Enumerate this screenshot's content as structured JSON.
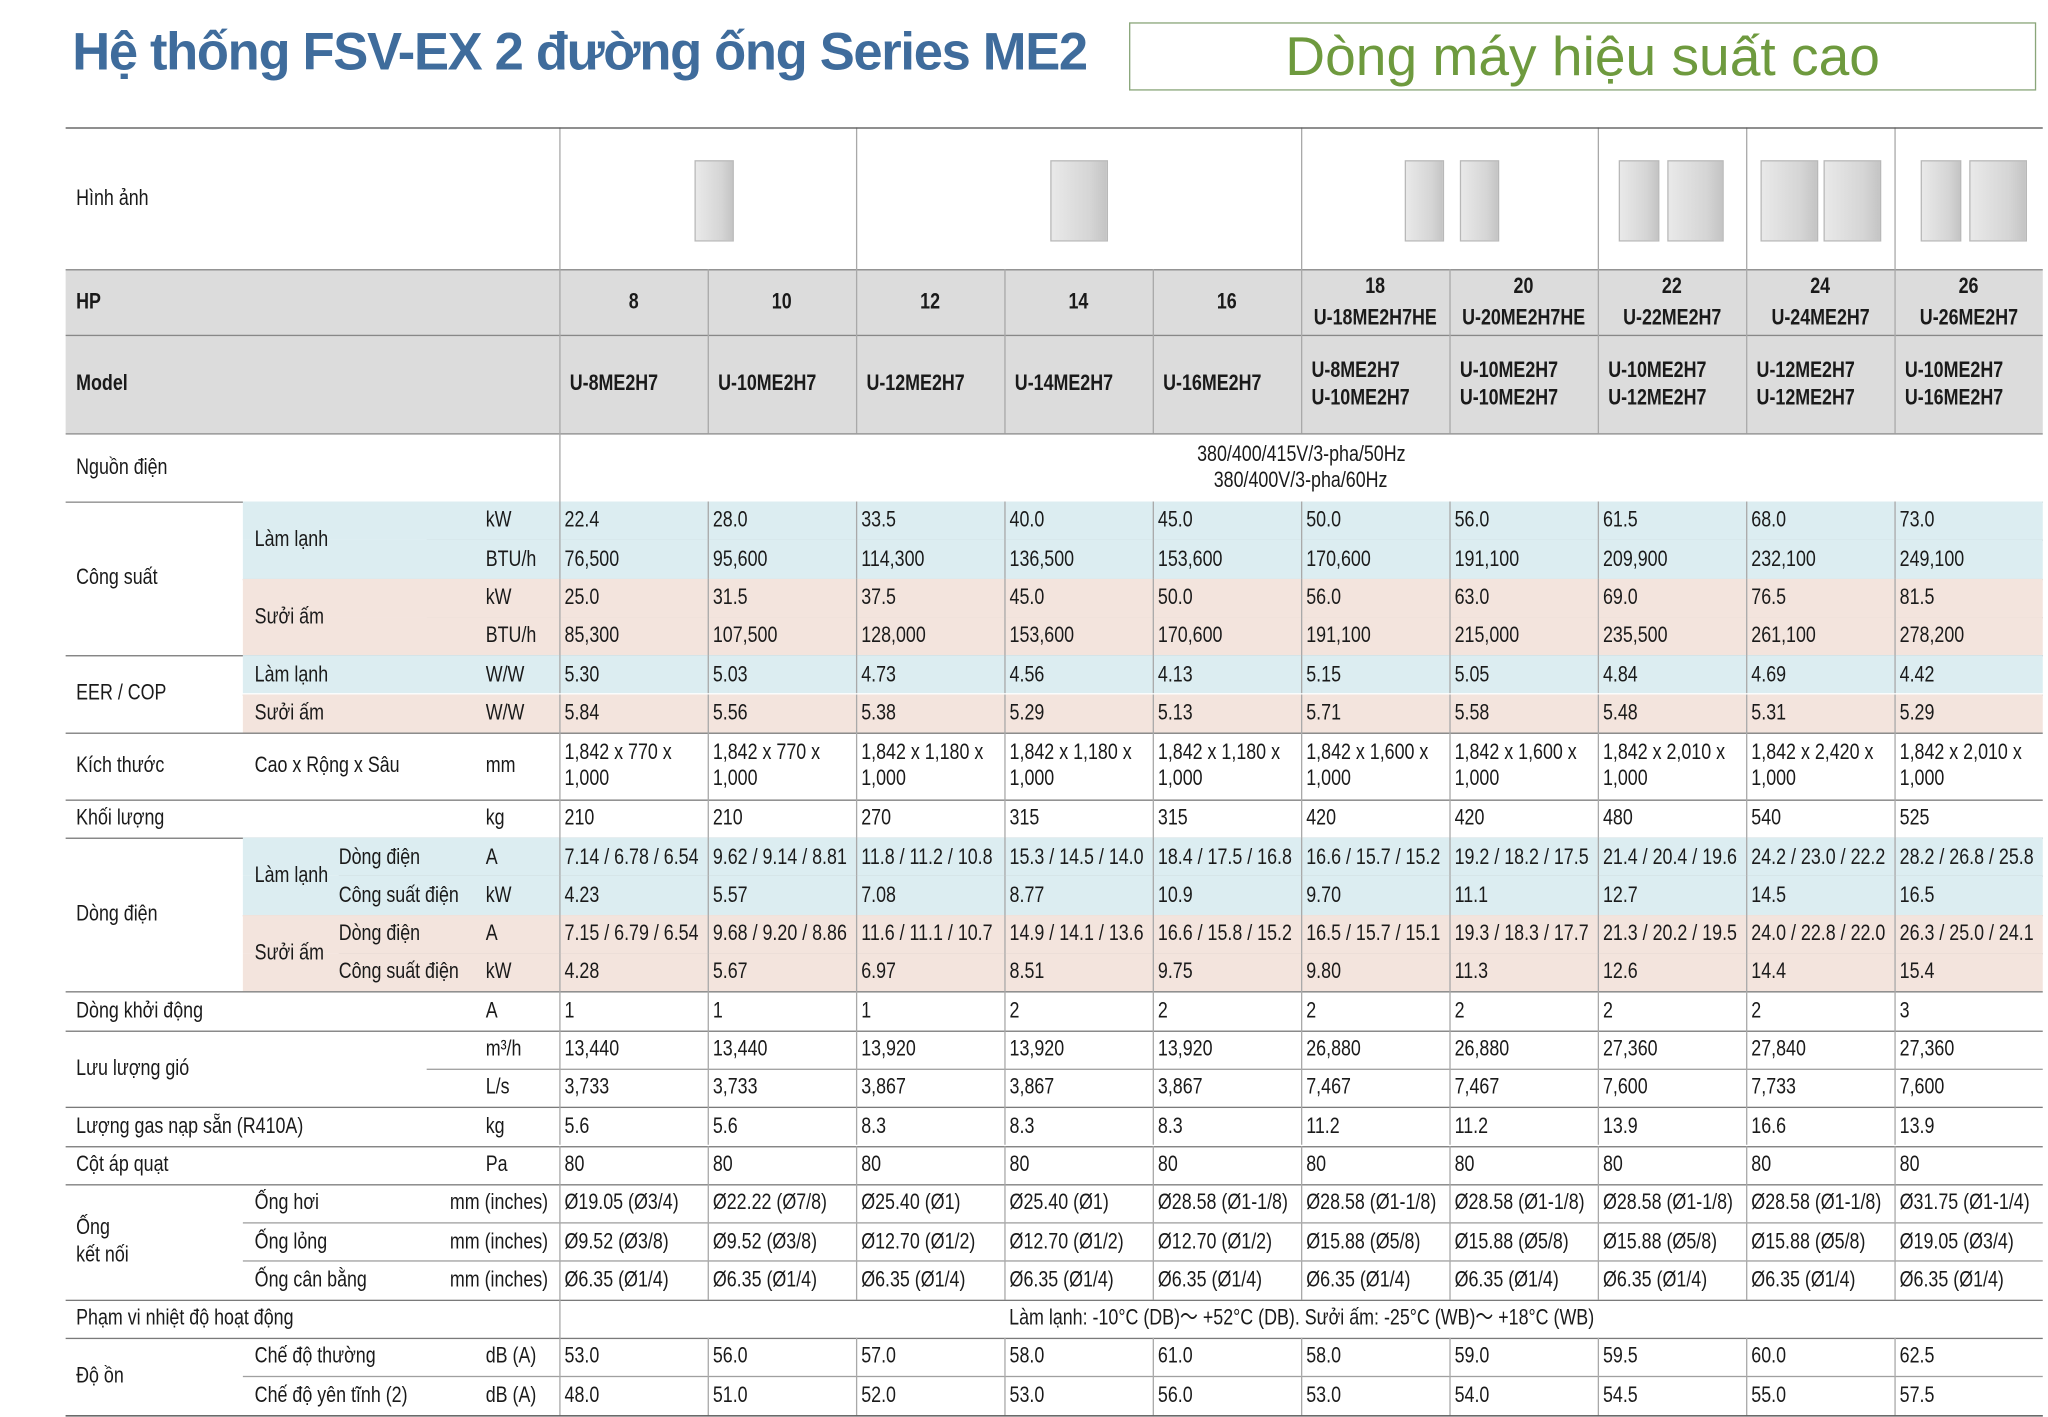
{
  "header": {
    "title": "Hệ thống FSV-EX 2 đường ống Series ME2",
    "subtitle": "Dòng máy hiệu suất cao"
  },
  "table": {
    "image_label": "Hình ảnh",
    "hp_label": "HP",
    "hp": [
      "8",
      "10",
      "12",
      "14",
      "16",
      "18",
      "20",
      "22",
      "24",
      "26"
    ],
    "hp_model": [
      "U-18ME2H7HE",
      "U-20ME2H7HE",
      "U-22ME2H7",
      "U-24ME2H7",
      "U-26ME2H7"
    ],
    "model_label": "Model",
    "models": [
      [
        "U-8ME2H7"
      ],
      [
        "U-10ME2H7"
      ],
      [
        "U-12ME2H7"
      ],
      [
        "U-14ME2H7"
      ],
      [
        "U-16ME2H7"
      ],
      [
        "U-8ME2H7",
        "U-10ME2H7"
      ],
      [
        "U-10ME2H7",
        "U-10ME2H7"
      ],
      [
        "U-10ME2H7",
        "U-12ME2H7"
      ],
      [
        "U-12ME2H7",
        "U-12ME2H7"
      ],
      [
        "U-10ME2H7",
        "U-16ME2H7"
      ]
    ],
    "power_supply": {
      "label": "Nguồn điện",
      "lines": [
        "380/400/415V/3-pha/50Hz",
        "380/400V/3-pha/60Hz"
      ]
    },
    "groups": [
      {
        "label": "Công suất",
        "subgroups": [
          {
            "label": "Làm lạnh",
            "color": "#dcedf1",
            "rows": [
              {
                "unit": "kW",
                "values": [
                  "22.4",
                  "28.0",
                  "33.5",
                  "40.0",
                  "45.0",
                  "50.0",
                  "56.0",
                  "61.5",
                  "68.0",
                  "73.0"
                ]
              },
              {
                "unit": "BTU/h",
                "values": [
                  "76,500",
                  "95,600",
                  "114,300",
                  "136,500",
                  "153,600",
                  "170,600",
                  "191,100",
                  "209,900",
                  "232,100",
                  "249,100"
                ]
              }
            ]
          },
          {
            "label": "Sưởi ấm",
            "color": "#f3e4dd",
            "rows": [
              {
                "unit": "kW",
                "values": [
                  "25.0",
                  "31.5",
                  "37.5",
                  "45.0",
                  "50.0",
                  "56.0",
                  "63.0",
                  "69.0",
                  "76.5",
                  "81.5"
                ]
              },
              {
                "unit": "BTU/h",
                "values": [
                  "85,300",
                  "107,500",
                  "128,000",
                  "153,600",
                  "170,600",
                  "191,100",
                  "215,000",
                  "235,500",
                  "261,100",
                  "278,200"
                ]
              }
            ]
          }
        ]
      },
      {
        "label": "EER / COP",
        "subgroups": [
          {
            "label": "Làm lạnh",
            "color": "#dcedf1",
            "rows": [
              {
                "unit": "W/W",
                "values": [
                  "5.30",
                  "5.03",
                  "4.73",
                  "4.56",
                  "4.13",
                  "5.15",
                  "5.05",
                  "4.84",
                  "4.69",
                  "4.42"
                ]
              }
            ]
          },
          {
            "label": "Sưởi ấm",
            "color": "#f3e4dd",
            "rows": [
              {
                "unit": "W/W",
                "values": [
                  "5.84",
                  "5.56",
                  "5.38",
                  "5.29",
                  "5.13",
                  "5.71",
                  "5.58",
                  "5.48",
                  "5.31",
                  "5.29"
                ]
              }
            ]
          }
        ]
      },
      {
        "label": "Kích thước",
        "subgroups": [
          {
            "rows": [
              {
                "label": "Cao x Rộng x Sâu",
                "unit": "mm",
                "values": [
                  "1,842 x 770 x\n1,000",
                  "1,842 x 770 x\n1,000",
                  "1,842 x 1,180 x\n1,000",
                  "1,842 x 1,180 x\n1,000",
                  "1,842 x 1,180 x\n1,000",
                  "1,842 x 1,600 x\n1,000",
                  "1,842 x 1,600 x\n1,000",
                  "1,842 x 2,010 x\n1,000",
                  "1,842 x 2,420 x\n1,000",
                  "1,842 x 2,010 x\n1,000"
                ]
              }
            ]
          }
        ]
      },
      {
        "label": "Khối lượng",
        "subgroups": [
          {
            "rows": [
              {
                "unit": "kg",
                "values": [
                  "210",
                  "210",
                  "270",
                  "315",
                  "315",
                  "420",
                  "420",
                  "480",
                  "540",
                  "525"
                ]
              }
            ]
          }
        ]
      },
      {
        "label": "Dòng điện",
        "subgroups": [
          {
            "label": "Làm lạnh",
            "color": "#dcedf1",
            "rows": [
              {
                "label": "Dòng điện",
                "unit": "A",
                "values": [
                  "7.14 / 6.78 / 6.54",
                  "9.62 / 9.14 / 8.81",
                  "11.8 / 11.2 / 10.8",
                  "15.3 / 14.5 / 14.0",
                  "18.4 / 17.5 / 16.8",
                  "16.6 / 15.7 / 15.2",
                  "19.2 / 18.2 / 17.5",
                  "21.4 / 20.4 / 19.6",
                  "24.2 / 23.0 / 22.2",
                  "28.2 / 26.8 / 25.8"
                ]
              },
              {
                "label": "Công suất điện",
                "unit": "kW",
                "values": [
                  "4.23",
                  "5.57",
                  "7.08",
                  "8.77",
                  "10.9",
                  "9.70",
                  "11.1",
                  "12.7",
                  "14.5",
                  "16.5"
                ]
              }
            ]
          },
          {
            "label": "Sưởi ấm",
            "color": "#f3e4dd",
            "rows": [
              {
                "label": "Dòng điện",
                "unit": "A",
                "values": [
                  "7.15 / 6.79 / 6.54",
                  "9.68 / 9.20 / 8.86",
                  "11.6 / 11.1 / 10.7",
                  "14.9 / 14.1 / 13.6",
                  "16.6 / 15.8 / 15.2",
                  "16.5 / 15.7 / 15.1",
                  "19.3 / 18.3 / 17.7",
                  "21.3 / 20.2 / 19.5",
                  "24.0 / 22.8 / 22.0",
                  "26.3 / 25.0 / 24.1"
                ]
              },
              {
                "label": "Công suất điện",
                "unit": "kW",
                "values": [
                  "4.28",
                  "5.67",
                  "6.97",
                  "8.51",
                  "9.75",
                  "9.80",
                  "11.3",
                  "12.6",
                  "14.4",
                  "15.4"
                ]
              }
            ]
          }
        ]
      },
      {
        "label": "Dòng khởi động",
        "subgroups": [
          {
            "rows": [
              {
                "unit": "A",
                "values": [
                  "1",
                  "1",
                  "1",
                  "2",
                  "2",
                  "2",
                  "2",
                  "2",
                  "2",
                  "3"
                ]
              }
            ]
          }
        ]
      },
      {
        "label": "Lưu lượng gió",
        "subgroups": [
          {
            "rows": [
              {
                "unit": "m³/h",
                "values": [
                  "13,440",
                  "13,440",
                  "13,920",
                  "13,920",
                  "13,920",
                  "26,880",
                  "26,880",
                  "27,360",
                  "27,840",
                  "27,360"
                ]
              },
              {
                "unit": "L/s",
                "values": [
                  "3,733",
                  "3,733",
                  "3,867",
                  "3,867",
                  "3,867",
                  "7,467",
                  "7,467",
                  "7,600",
                  "7,733",
                  "7,600"
                ]
              }
            ]
          }
        ]
      },
      {
        "label": "Lượng gas nạp sẵn (R410A)",
        "subgroups": [
          {
            "rows": [
              {
                "unit": "kg",
                "values": [
                  "5.6",
                  "5.6",
                  "8.3",
                  "8.3",
                  "8.3",
                  "11.2",
                  "11.2",
                  "13.9",
                  "16.6",
                  "13.9"
                ]
              }
            ]
          }
        ]
      },
      {
        "label": "Cột áp quạt",
        "subgroups": [
          {
            "rows": [
              {
                "unit": "Pa",
                "values": [
                  "80",
                  "80",
                  "80",
                  "80",
                  "80",
                  "80",
                  "80",
                  "80",
                  "80",
                  "80"
                ]
              }
            ]
          }
        ]
      },
      {
        "label": "Ống\nkết nối",
        "subgroups": [
          {
            "rows": [
              {
                "label": "Ống hơi",
                "unit": "mm (inches)",
                "values": [
                  "Ø19.05 (Ø3/4)",
                  "Ø22.22 (Ø7/8)",
                  "Ø25.40 (Ø1)",
                  "Ø25.40 (Ø1)",
                  "Ø28.58 (Ø1-1/8)",
                  "Ø28.58 (Ø1-1/8)",
                  "Ø28.58 (Ø1-1/8)",
                  "Ø28.58 (Ø1-1/8)",
                  "Ø28.58 (Ø1-1/8)",
                  "Ø31.75 (Ø1-1/4)"
                ]
              },
              {
                "label": "Ống lỏng",
                "unit": "mm (inches)",
                "values": [
                  "Ø9.52 (Ø3/8)",
                  "Ø9.52 (Ø3/8)",
                  "Ø12.70 (Ø1/2)",
                  "Ø12.70 (Ø1/2)",
                  "Ø12.70 (Ø1/2)",
                  "Ø15.88 (Ø5/8)",
                  "Ø15.88 (Ø5/8)",
                  "Ø15.88 (Ø5/8)",
                  "Ø15.88 (Ø5/8)",
                  "Ø19.05 (Ø3/4)"
                ]
              },
              {
                "label": "Ống cân bằng",
                "unit": "mm (inches)",
                "values": [
                  "Ø6.35 (Ø1/4)",
                  "Ø6.35 (Ø1/4)",
                  "Ø6.35 (Ø1/4)",
                  "Ø6.35 (Ø1/4)",
                  "Ø6.35 (Ø1/4)",
                  "Ø6.35 (Ø1/4)",
                  "Ø6.35 (Ø1/4)",
                  "Ø6.35 (Ø1/4)",
                  "Ø6.35 (Ø1/4)",
                  "Ø6.35 (Ø1/4)"
                ]
              }
            ]
          }
        ]
      },
      {
        "label": "Phạm vi nhiệt độ hoạt động",
        "subgroups": [
          {
            "rows": [
              {
                "span": "Làm lạnh: -10°C (DB)～ +52°C (DB). Sưởi ấm: -25°C (WB)～ +18°C (WB)"
              }
            ]
          }
        ]
      },
      {
        "label": "Độ ồn",
        "subgroups": [
          {
            "rows": [
              {
                "label": "Chế độ thường",
                "unit": "dB (A)",
                "values": [
                  "53.0",
                  "56.0",
                  "57.0",
                  "58.0",
                  "61.0",
                  "58.0",
                  "59.0",
                  "59.5",
                  "60.0",
                  "62.5"
                ]
              },
              {
                "label": "Chế độ yên tĩnh (2)",
                "unit": "dB (A)",
                "values": [
                  "48.0",
                  "51.0",
                  "52.0",
                  "53.0",
                  "56.0",
                  "53.0",
                  "54.0",
                  "54.5",
                  "55.0",
                  "57.5"
                ]
              }
            ]
          }
        ]
      }
    ]
  }
}
